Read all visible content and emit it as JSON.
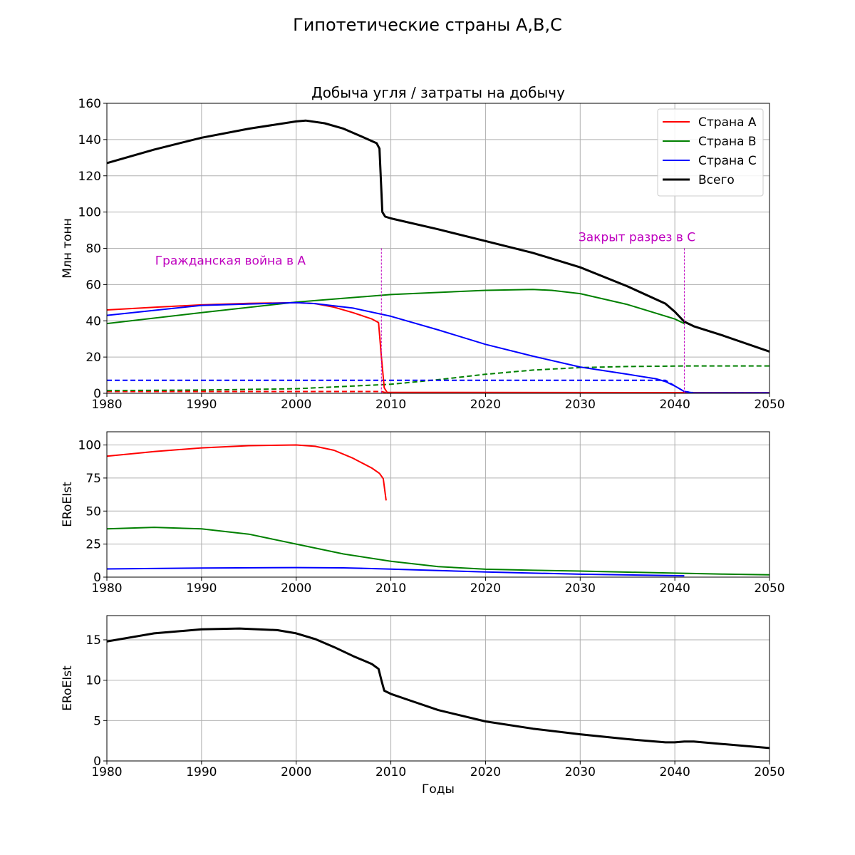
{
  "suptitle": "Гипотетические страны A,B,C",
  "xlabel": "Годы",
  "colors": {
    "A": "#ff0000",
    "B": "#008000",
    "C": "#0000ff",
    "total": "#000000",
    "annotation": "#bf00bf",
    "grid": "#b0b0b0"
  },
  "chart_data": [
    {
      "type": "line",
      "title": "Добыча угля / затраты на добычу",
      "xlabel": "",
      "ylabel": "Млн тонн",
      "xlim": [
        1980,
        2050
      ],
      "ylim": [
        0,
        160
      ],
      "xticks": [
        1980,
        1990,
        2000,
        2010,
        2020,
        2030,
        2040,
        2050
      ],
      "yticks": [
        0,
        20,
        40,
        60,
        80,
        100,
        120,
        140,
        160
      ],
      "grid": true,
      "legend": "top-right",
      "series": [
        {
          "name": "Страна A",
          "key": "A",
          "style": "solid",
          "x": [
            1980,
            1985,
            1990,
            1995,
            2000,
            2002,
            2004,
            2006,
            2008,
            2008.7,
            2009,
            2009.3,
            2009.6,
            2050
          ],
          "y": [
            46,
            47.5,
            48.8,
            49.6,
            50,
            49.5,
            47.5,
            44.5,
            41,
            39,
            20,
            3,
            0.5,
            0.3
          ]
        },
        {
          "name": "Страна B",
          "key": "B",
          "style": "solid",
          "x": [
            1980,
            1990,
            2000,
            2010,
            2020,
            2025,
            2027,
            2030,
            2035,
            2040,
            2041
          ],
          "y": [
            38.5,
            44.5,
            50.3,
            54.5,
            56.8,
            57.3,
            56.8,
            55,
            49,
            41,
            38.5
          ]
        },
        {
          "name": "Страна C",
          "key": "C",
          "style": "solid",
          "x": [
            1980,
            1990,
            2000,
            2002,
            2006,
            2010,
            2015,
            2020,
            2025,
            2030,
            2035,
            2038,
            2039,
            2040,
            2041,
            2042,
            2050
          ],
          "y": [
            43,
            48.5,
            50,
            49.5,
            47,
            42.5,
            35,
            27,
            20.5,
            14.5,
            10.5,
            8,
            6.5,
            4,
            1,
            0.2,
            0.2
          ]
        },
        {
          "name": "Всего",
          "key": "total",
          "style": "solid",
          "width": 3,
          "x": [
            1980,
            1985,
            1990,
            1995,
            2000,
            2001,
            2003,
            2005,
            2007,
            2008.5,
            2008.8,
            2009.1,
            2009.4,
            2010,
            2015,
            2020,
            2025,
            2030,
            2035,
            2039,
            2040,
            2041,
            2042,
            2045,
            2050
          ],
          "y": [
            127,
            134.5,
            141,
            146,
            150,
            150.5,
            149,
            146,
            141.5,
            138,
            135,
            100,
            97.5,
            96.5,
            90.5,
            84,
            77.5,
            69.5,
            59,
            49.5,
            45,
            39.5,
            37,
            32,
            23
          ]
        },
        {
          "name": "",
          "key": "A",
          "style": "dashed",
          "x": [
            1980,
            2009,
            2009.5,
            2050
          ],
          "y": [
            1,
            1,
            0.3,
            0.3
          ]
        },
        {
          "name": "",
          "key": "B",
          "style": "dashed",
          "x": [
            1980,
            1990,
            2000,
            2010,
            2015,
            2020,
            2025,
            2030,
            2035,
            2040,
            2041,
            2045,
            2050
          ],
          "y": [
            1.5,
            1.8,
            2.5,
            5,
            7.5,
            10.5,
            12.8,
            14.2,
            14.8,
            15,
            15.1,
            15.1,
            15.1
          ]
        },
        {
          "name": "",
          "key": "C",
          "style": "dashed",
          "x": [
            1980,
            2039,
            2041,
            2042,
            2050
          ],
          "y": [
            7.2,
            7.2,
            1,
            0.3,
            0.3
          ]
        }
      ],
      "annotations": [
        {
          "text": "Гражданская война в A",
          "x": 2009,
          "y": 80,
          "label_x": 2001,
          "label_y": 71,
          "anchor": "end"
        },
        {
          "text": "Закрыт разрез в C",
          "x": 2041,
          "y": 80,
          "label_x": 2036,
          "label_y": 84,
          "anchor": "middle"
        }
      ]
    },
    {
      "type": "line",
      "title": "",
      "ylabel": "ERoEIst",
      "xlim": [
        1980,
        2050
      ],
      "ylim": [
        0,
        110
      ],
      "xticks": [
        1980,
        1990,
        2000,
        2010,
        2020,
        2030,
        2040,
        2050
      ],
      "yticks": [
        0,
        25,
        50,
        75,
        100
      ],
      "grid": true,
      "series": [
        {
          "name": "",
          "key": "A",
          "style": "solid",
          "x": [
            1980,
            1985,
            1990,
            1995,
            2000,
            2002,
            2004,
            2006,
            2008,
            2008.8,
            2009.2,
            2009.5
          ],
          "y": [
            91.5,
            95,
            97.8,
            99.5,
            100,
            99,
            96,
            90,
            82.5,
            78.5,
            74.5,
            58
          ]
        },
        {
          "name": "",
          "key": "B",
          "style": "solid",
          "x": [
            1980,
            1985,
            1990,
            1995,
            2000,
            2005,
            2010,
            2015,
            2020,
            2025,
            2030,
            2035,
            2040,
            2045,
            2050
          ],
          "y": [
            36.5,
            37.7,
            36.5,
            32.5,
            25,
            17.5,
            12,
            8,
            6,
            5.2,
            4.6,
            3.8,
            3,
            2.3,
            1.7
          ]
        },
        {
          "name": "",
          "key": "C",
          "style": "solid",
          "x": [
            1980,
            1990,
            2000,
            2005,
            2010,
            2020,
            2030,
            2041
          ],
          "y": [
            6.2,
            6.9,
            7.2,
            7,
            6.1,
            3.9,
            2.2,
            1
          ]
        }
      ]
    },
    {
      "type": "line",
      "title": "",
      "xlabel": "Годы",
      "ylabel": "ERoEIst",
      "xlim": [
        1980,
        2050
      ],
      "ylim": [
        0,
        18
      ],
      "xticks": [
        1980,
        1990,
        2000,
        2010,
        2020,
        2030,
        2040,
        2050
      ],
      "yticks": [
        0,
        5,
        10,
        15
      ],
      "grid": true,
      "series": [
        {
          "name": "",
          "key": "total",
          "style": "solid",
          "width": 3,
          "x": [
            1980,
            1985,
            1990,
            1994,
            1998,
            2000,
            2002,
            2004,
            2006,
            2008,
            2008.7,
            2009,
            2009.3,
            2010,
            2012,
            2015,
            2020,
            2025,
            2030,
            2035,
            2039,
            2040,
            2041,
            2042,
            2045,
            2050
          ],
          "y": [
            14.8,
            15.8,
            16.3,
            16.4,
            16.2,
            15.8,
            15.1,
            14.1,
            13.0,
            12.0,
            11.4,
            10.0,
            8.7,
            8.3,
            7.5,
            6.3,
            4.9,
            4.0,
            3.3,
            2.7,
            2.3,
            2.3,
            2.4,
            2.4,
            2.1,
            1.6
          ]
        }
      ]
    }
  ]
}
